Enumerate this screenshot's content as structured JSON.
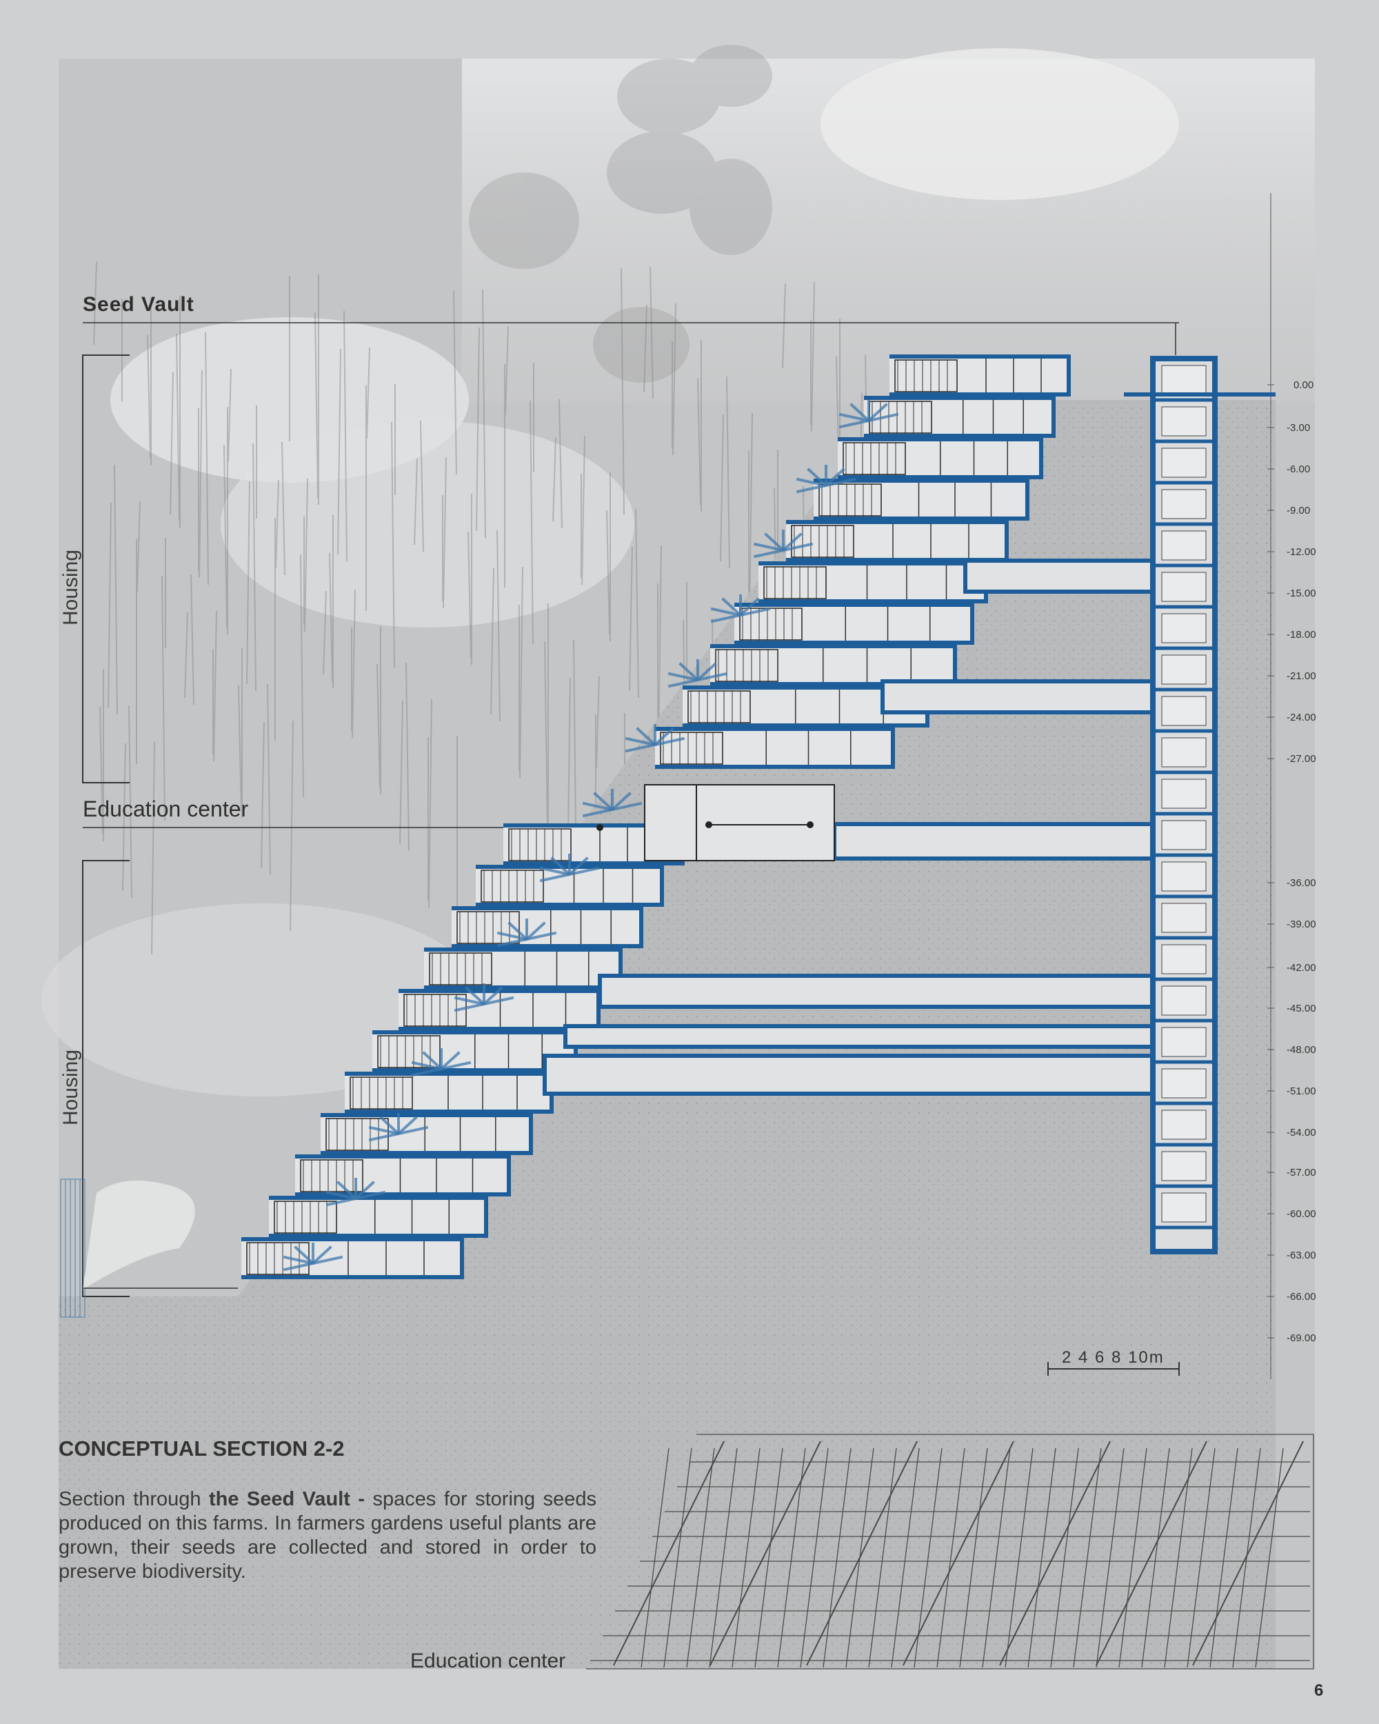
{
  "labels": {
    "seed_vault": "Seed Vault",
    "education_center": "Education center",
    "housing_top": "Housing",
    "housing_bottom": "Housing"
  },
  "elevations": [
    "0.00",
    "-3.00",
    "-6.00",
    "-9.00",
    "-12.00",
    "-15.00",
    "-18.00",
    "-21.00",
    "-24.00",
    "-27.00",
    "-36.00",
    "-39.00",
    "-42.00",
    "-45.00",
    "-48.00",
    "-51.00",
    "-54.00",
    "-57.00",
    "-60.00",
    "-63.00",
    "-66.00",
    "-69.00"
  ],
  "scale_bar": "2  4   6  8  10m",
  "caption": {
    "title": "CONCEPTUAL SECTION 2-2",
    "intro": "Section through ",
    "bold": "the Seed Vault -",
    "rest": " spaces for storing seeds produced on this farms. In farmers gardens useful plants are grown, their seeds are collected and stored in order to preserve biodiversity."
  },
  "bottom_label": "Education center",
  "page_number": "6",
  "colors": {
    "structure": "#1d5d99",
    "background": "#c4c5c6",
    "ground": "#b8b9ba"
  }
}
